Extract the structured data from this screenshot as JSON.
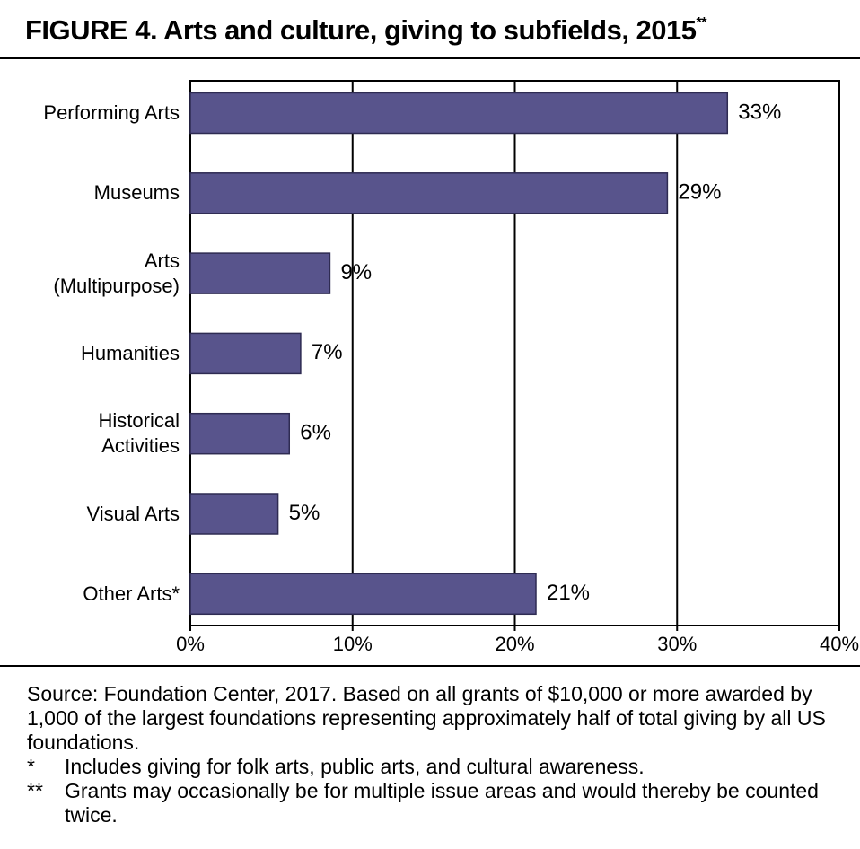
{
  "chart_data": {
    "type": "hbar",
    "title": "FIGURE 4. Arts and culture, giving to subfields, 2015",
    "title_note_mark": "**",
    "categories": [
      "Performing Arts",
      "Museums",
      "Arts\n(Multipurpose)",
      "Humanities",
      "Historical\nActivities",
      "Visual Arts",
      "Other Arts*"
    ],
    "values": [
      33.1,
      29.4,
      8.6,
      6.8,
      6.1,
      5.4,
      21.3
    ],
    "value_labels": [
      "33%",
      "29%",
      "9%",
      "7%",
      "6%",
      "5%",
      "21%"
    ],
    "color": "#58548c",
    "xlim": [
      0,
      40
    ],
    "xticks": [
      {
        "value": 0,
        "label": "0%"
      },
      {
        "value": 10,
        "label": "10%"
      },
      {
        "value": 20,
        "label": "20%"
      },
      {
        "value": 30,
        "label": "30%"
      },
      {
        "value": 40,
        "label": "40%"
      }
    ],
    "grid": true,
    "source": "Source: Foundation Center, 2017. Based on all grants of $10,000 or more awarded by 1,000 of the largest foundations representing approximately half of total giving by all US foundations.",
    "notes": [
      {
        "mark": "*",
        "text": "Includes giving for folk arts, public arts, and cultural awareness."
      },
      {
        "mark": "**",
        "text": "Grants may occasionally be for multiple issue areas and would thereby be counted twice."
      }
    ]
  }
}
